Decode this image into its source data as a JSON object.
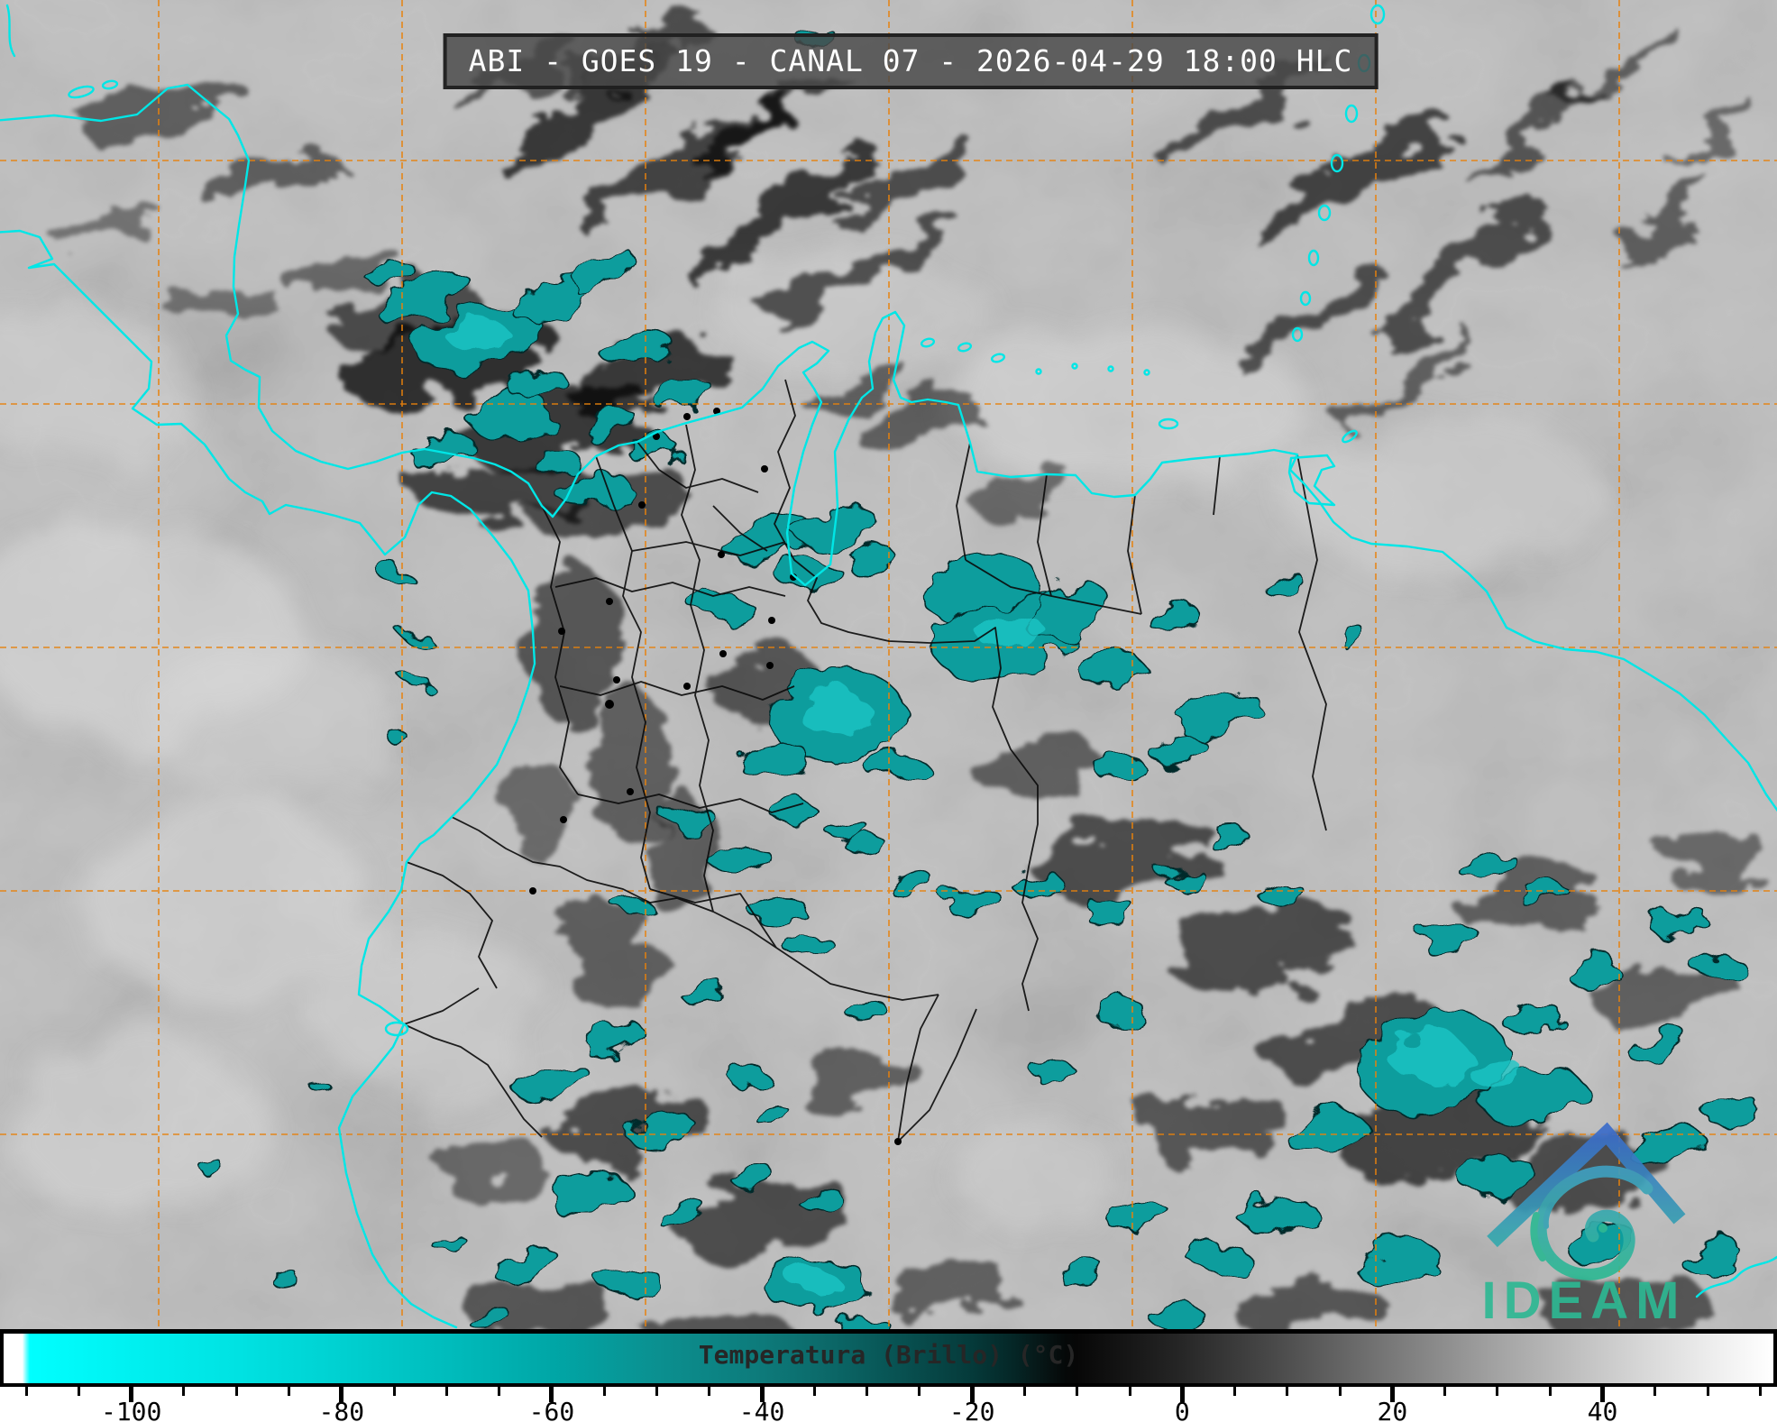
{
  "header": {
    "title": "ABI - GOES 19 - CANAL 07 - 2026-04-29 18:00 HLC"
  },
  "satellite": {
    "instrument": "ABI",
    "satellite": "GOES 19",
    "channel": "CANAL 07",
    "datetime": "2026-04-29 18:00",
    "timezone": "HLC"
  },
  "colorbar": {
    "label": "Temperatura (Brillo) (°C)",
    "unit": "°C",
    "min": -112.5,
    "max": 56.6,
    "minor_tick_step": 5,
    "major_tick_step": 20,
    "major_ticks": [
      -100,
      -80,
      -60,
      -40,
      -20,
      0,
      20,
      40
    ],
    "gradient": [
      {
        "v": -112.5,
        "c": "#ffffff"
      },
      {
        "v": -110.7,
        "c": "#ffffff"
      },
      {
        "v": -110.3,
        "c": "#66ffff"
      },
      {
        "v": -110.0,
        "c": "#00ffff"
      },
      {
        "v": -100.0,
        "c": "#00f0f0"
      },
      {
        "v": -90.0,
        "c": "#00e2e2"
      },
      {
        "v": -80.0,
        "c": "#00d0d0"
      },
      {
        "v": -70.0,
        "c": "#00bcbc"
      },
      {
        "v": -60.0,
        "c": "#00a6a6"
      },
      {
        "v": -50.0,
        "c": "#0b9090"
      },
      {
        "v": -40.0,
        "c": "#0d7a7a"
      },
      {
        "v": -35.0,
        "c": "#0c6c6c"
      },
      {
        "v": -30.0,
        "c": "#095c5c"
      },
      {
        "v": -25.0,
        "c": "#074b4b"
      },
      {
        "v": -20.0,
        "c": "#053a3a"
      },
      {
        "v": -16.0,
        "c": "#052626"
      },
      {
        "v": -13.0,
        "c": "#061414"
      },
      {
        "v": -11.0,
        "c": "#050808"
      },
      {
        "v": -10.0,
        "c": "#070707"
      },
      {
        "v": -5.0,
        "c": "#161616"
      },
      {
        "v": 0.0,
        "c": "#262626"
      },
      {
        "v": 5.0,
        "c": "#3a3a3a"
      },
      {
        "v": 10.0,
        "c": "#4e4e4e"
      },
      {
        "v": 15.0,
        "c": "#636363"
      },
      {
        "v": 20.0,
        "c": "#787878"
      },
      {
        "v": 25.0,
        "c": "#8d8d8d"
      },
      {
        "v": 30.0,
        "c": "#a2a2a2"
      },
      {
        "v": 35.0,
        "c": "#b5b5b5"
      },
      {
        "v": 40.0,
        "c": "#c8c8c8"
      },
      {
        "v": 45.0,
        "c": "#dadada"
      },
      {
        "v": 50.0,
        "c": "#ebebeb"
      },
      {
        "v": 54.0,
        "c": "#f7f7f7"
      },
      {
        "v": 56.6,
        "c": "#ffffff"
      }
    ]
  },
  "logo": {
    "text": "IDEAM"
  },
  "colors": {
    "coastline": "#00e6e6",
    "graticule": "#e8820c",
    "borders": "#0a0a0a",
    "cold_cloud_fill": "#0e9d9d",
    "cold_cloud_bright": "#1cc6c6",
    "title_background": "rgba(72,72,72,0.82)",
    "logo_blue": "#3b6cc9",
    "logo_teal": "#36a9ad",
    "logo_green": "#2eb893"
  }
}
